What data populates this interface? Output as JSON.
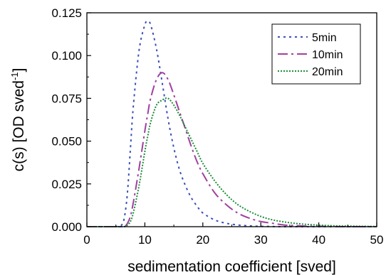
{
  "chart_data": {
    "type": "line",
    "title": "",
    "xlabel": "sedimentation coefficient [sved]",
    "ylabel": "c(s) [OD sved",
    "ylabel_superscript": "-1",
    "ylabel_suffix": "]",
    "xlim": [
      0,
      50
    ],
    "ylim": [
      0,
      0.125
    ],
    "xticks": [
      "0",
      "10",
      "20",
      "30",
      "40",
      "50"
    ],
    "yticks": [
      "0.000",
      "0.025",
      "0.050",
      "0.075",
      "0.100",
      "0.125"
    ],
    "grid": false,
    "legend_position": "top-right",
    "x": [
      0,
      4,
      5,
      6,
      6.5,
      7,
      7.5,
      8,
      9,
      10,
      10.5,
      11,
      12,
      13,
      14,
      15,
      16,
      17,
      18,
      19,
      20,
      22,
      24,
      26,
      28,
      30,
      32,
      34,
      36,
      38,
      40,
      42,
      44,
      46,
      48,
      50
    ],
    "series": [
      {
        "name": "5min",
        "color": "#3b4fb8",
        "dash": "3,5",
        "values": [
          0,
          0,
          0,
          0.001,
          0.006,
          0.02,
          0.045,
          0.07,
          0.103,
          0.118,
          0.12,
          0.118,
          0.104,
          0.084,
          0.063,
          0.046,
          0.033,
          0.024,
          0.017,
          0.012,
          0.008,
          0.004,
          0.002,
          0.001,
          0.0005,
          0.0002,
          0.0001,
          0,
          0,
          0,
          0,
          0,
          0,
          0,
          0,
          0
        ]
      },
      {
        "name": "10min",
        "color": "#a040a0",
        "dash": "14,5,3,5",
        "values": [
          0,
          0,
          0,
          0,
          0,
          0.002,
          0.006,
          0.014,
          0.034,
          0.056,
          0.066,
          0.075,
          0.086,
          0.09,
          0.086,
          0.077,
          0.067,
          0.057,
          0.047,
          0.038,
          0.031,
          0.02,
          0.013,
          0.008,
          0.005,
          0.003,
          0.002,
          0.001,
          0.0006,
          0.0003,
          0.0002,
          0.0001,
          0,
          0,
          0,
          0
        ]
      },
      {
        "name": "20min",
        "color": "#1e8c3a",
        "dash": "2,2",
        "values": [
          0,
          0,
          0,
          0,
          0,
          0.001,
          0.003,
          0.008,
          0.024,
          0.044,
          0.053,
          0.061,
          0.071,
          0.074,
          0.075,
          0.071,
          0.065,
          0.058,
          0.051,
          0.044,
          0.037,
          0.027,
          0.019,
          0.013,
          0.009,
          0.006,
          0.004,
          0.0028,
          0.0019,
          0.0013,
          0.0009,
          0.0006,
          0.0004,
          0.0003,
          0.0002,
          0.0001
        ]
      }
    ]
  }
}
